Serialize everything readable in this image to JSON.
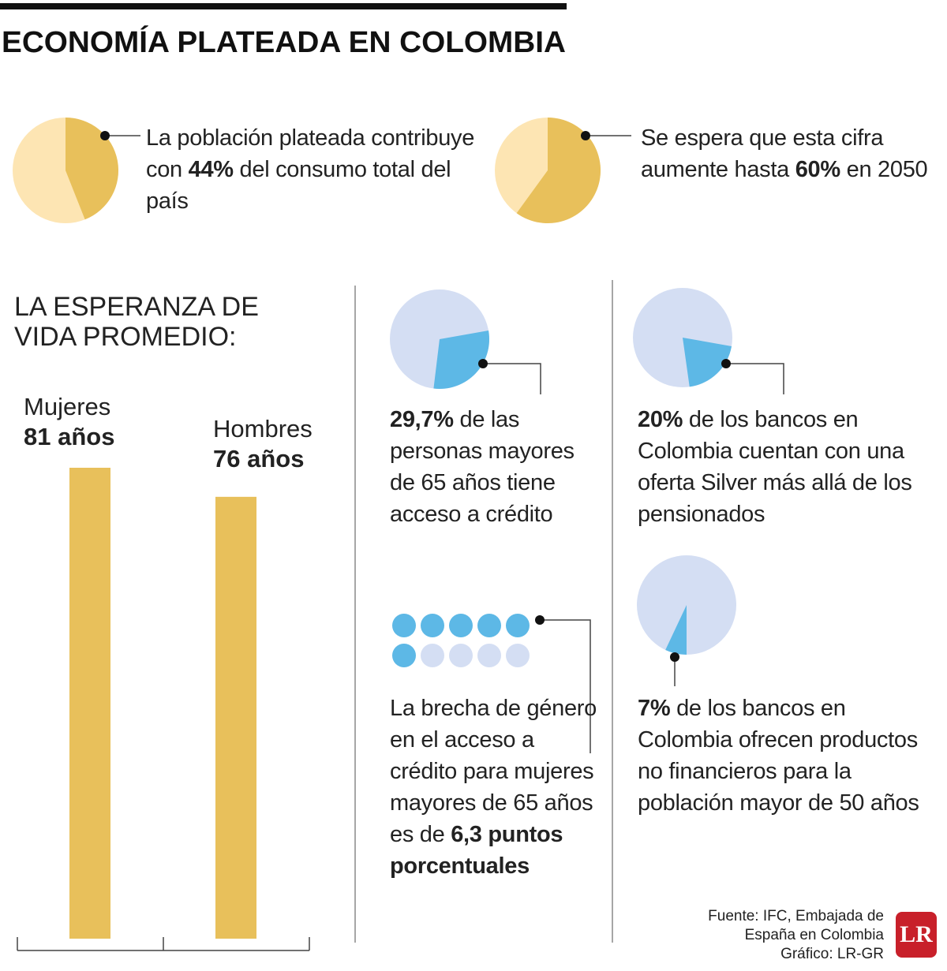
{
  "title": "ECONOMÍA PLATEADA EN COLOMBIA",
  "chart_data": [
    {
      "type": "pie",
      "values": [
        44
      ],
      "value_labels": [
        "44%"
      ],
      "colors": [
        "#e8c05b",
        "#fde5b3"
      ],
      "text_before": "La población plateada contribuye con ",
      "text_after": " del consumo total del país"
    },
    {
      "type": "pie",
      "values": [
        60
      ],
      "value_labels": [
        "60%"
      ],
      "colors": [
        "#e8c05b",
        "#fde5b3"
      ],
      "text_before": "Se espera que esta cifra aumente hasta ",
      "text_after": " en 2050"
    },
    {
      "type": "bar",
      "title": "LA ESPERANZA DE VIDA PROMEDIO:",
      "categories": [
        "Mujeres",
        "Hombres"
      ],
      "values": [
        81,
        76
      ],
      "value_labels": [
        "81 años",
        "76 años"
      ],
      "color": "#e8c05b"
    },
    {
      "type": "pie",
      "values": [
        29.7
      ],
      "value_labels": [
        "29,7%"
      ],
      "colors": [
        "#5db8e6",
        "#d4def3"
      ],
      "text_after": " de las personas mayores de 65 años tiene acceso a crédito"
    },
    {
      "type": "waffle",
      "values": [
        6.3
      ],
      "value_labels": [
        "6,3"
      ],
      "dots": 10,
      "colors": [
        "#5db8e6",
        "#d4def3"
      ],
      "text_before": "La brecha de género en el acceso a crédito para mujeres mayores de 65 años es de ",
      "text_after": " puntos porcentuales",
      "bold_after": true
    },
    {
      "type": "pie",
      "values": [
        20
      ],
      "value_labels": [
        "20%"
      ],
      "colors": [
        "#5db8e6",
        "#d4def3"
      ],
      "text_after": " de los bancos en Colombia cuentan con una oferta Silver más allá de los pensionados"
    },
    {
      "type": "pie",
      "values": [
        7
      ],
      "value_labels": [
        "7%"
      ],
      "colors": [
        "#5db8e6",
        "#d4def3"
      ],
      "text_after": " de los bancos en Colombia ofrecen productos no financieros para la población mayor de 50 años"
    }
  ],
  "source": "Fuente: IFC, Embajada de España en Colombia",
  "credit": "Gráfico: LR-GR",
  "logo": "LR"
}
